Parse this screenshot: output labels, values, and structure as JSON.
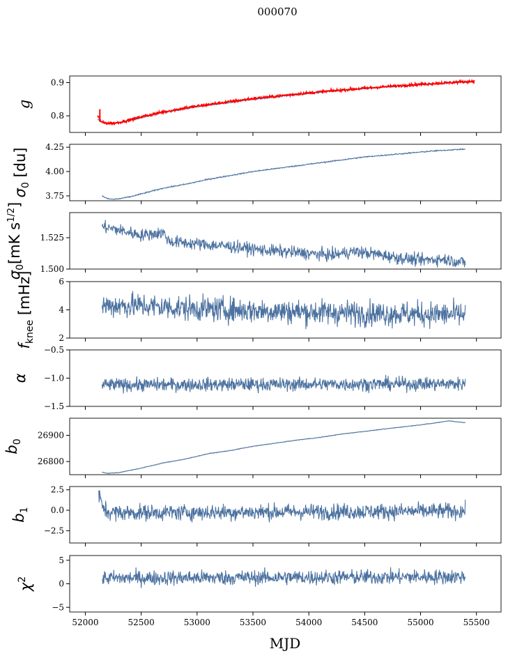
{
  "figure": {
    "title": "000070",
    "xlabel": "MJD",
    "x_ticks": [
      52000,
      52500,
      53000,
      53500,
      54000,
      54500,
      55000,
      55500
    ],
    "x_tick_labels": [
      "52000",
      "52500",
      "53000",
      "53500",
      "54000",
      "54500",
      "55000",
      "55500"
    ],
    "colors": {
      "series": "#4c72a0",
      "overlay": "#ff0000",
      "frame": "#000000"
    }
  },
  "chart_data": [
    {
      "type": "line",
      "ylabel": "g",
      "ylim": [
        0.75,
        0.92
      ],
      "xlim": [
        51860,
        55720
      ],
      "yticks": [
        0.8,
        0.9
      ],
      "ytick_labels": [
        "0.8",
        "0.9"
      ],
      "series": [
        {
          "style": "blue",
          "x": [
            52110,
            52150,
            52200,
            52250,
            52300,
            52400,
            52500,
            52700,
            52900,
            53100,
            53300,
            53500,
            53700,
            53900,
            54100,
            54300,
            54500,
            54700,
            54900,
            55100,
            55300,
            55450
          ],
          "values": [
            0.79,
            0.78,
            0.777,
            0.777,
            0.779,
            0.786,
            0.795,
            0.81,
            0.822,
            0.832,
            0.841,
            0.85,
            0.857,
            0.864,
            0.871,
            0.877,
            0.882,
            0.887,
            0.892,
            0.896,
            0.9,
            0.903
          ],
          "noise": 0.001
        },
        {
          "style": "red",
          "x": [
            52110,
            52150,
            52200,
            52250,
            52300,
            52400,
            52500,
            52700,
            52900,
            53100,
            53300,
            53500,
            53700,
            53900,
            54100,
            54300,
            54500,
            54700,
            54900,
            55100,
            55300,
            55480
          ],
          "values": [
            0.8,
            0.78,
            0.778,
            0.778,
            0.78,
            0.788,
            0.797,
            0.812,
            0.824,
            0.834,
            0.843,
            0.852,
            0.859,
            0.866,
            0.872,
            0.878,
            0.883,
            0.888,
            0.893,
            0.897,
            0.901,
            0.904
          ],
          "noise": 0.002,
          "spike": {
            "x": 52130,
            "low": 0.782,
            "high": 0.82
          }
        }
      ]
    },
    {
      "type": "line",
      "ylabel": "σ0 [du]",
      "ylim": [
        3.7,
        4.28
      ],
      "xlim": [
        51860,
        55720
      ],
      "yticks": [
        3.75,
        4.0,
        4.25
      ],
      "ytick_labels": [
        "3.75",
        "4.00",
        "4.25"
      ],
      "series": [
        {
          "style": "blue",
          "x": [
            52150,
            52200,
            52250,
            52300,
            52400,
            52500,
            52600,
            52700,
            52900,
            53100,
            53300,
            53500,
            53700,
            53900,
            54100,
            54300,
            54500,
            54700,
            54900,
            55100,
            55300,
            55400
          ],
          "values": [
            3.75,
            3.72,
            3.715,
            3.72,
            3.74,
            3.77,
            3.8,
            3.83,
            3.87,
            3.92,
            3.96,
            4.0,
            4.03,
            4.06,
            4.09,
            4.12,
            4.15,
            4.17,
            4.19,
            4.21,
            4.225,
            4.23
          ],
          "noise": 0.003
        }
      ]
    },
    {
      "type": "line",
      "ylabel": "σ0[mK s1/2]",
      "ylim": [
        1.5,
        1.545
      ],
      "xlim": [
        51860,
        55720
      ],
      "yticks": [
        1.5,
        1.525
      ],
      "ytick_labels": [
        "1.500",
        "1.525"
      ],
      "series": [
        {
          "style": "blue",
          "x": [
            52150,
            52300,
            52500,
            52700,
            52750,
            53000,
            53300,
            53600,
            53900,
            54200,
            54400,
            54600,
            54800,
            55000,
            55200,
            55400
          ],
          "values": [
            1.534,
            1.531,
            1.527,
            1.529,
            1.522,
            1.52,
            1.518,
            1.515,
            1.513,
            1.511,
            1.514,
            1.512,
            1.509,
            1.507,
            1.508,
            1.505
          ],
          "noise": 0.0025
        }
      ]
    },
    {
      "type": "line",
      "ylabel": "fknee [mHz]",
      "ylim": [
        2,
        6
      ],
      "xlim": [
        51860,
        55720
      ],
      "yticks": [
        2,
        4,
        6
      ],
      "ytick_labels": [
        "2",
        "4",
        "6"
      ],
      "series": [
        {
          "style": "blue",
          "x": [
            52150,
            52500,
            52800,
            53100,
            53500,
            54000,
            54500,
            55000,
            55400
          ],
          "values": [
            4.3,
            4.3,
            4.15,
            4.05,
            3.95,
            3.85,
            3.75,
            3.7,
            3.65
          ],
          "noise": 0.45
        }
      ]
    },
    {
      "type": "line",
      "ylabel": "α",
      "ylim": [
        -1.5,
        -0.5
      ],
      "xlim": [
        51860,
        55720
      ],
      "yticks": [
        -1.5,
        -1.0,
        -0.5
      ],
      "ytick_labels": [
        "−1.5",
        "−1.0",
        "−0.5"
      ],
      "series": [
        {
          "style": "blue",
          "x": [
            52150,
            55400
          ],
          "values": [
            -1.12,
            -1.1
          ],
          "noise": 0.06
        }
      ]
    },
    {
      "type": "line",
      "ylabel": "b0",
      "ylim": [
        26750,
        26965
      ],
      "xlim": [
        51860,
        55720
      ],
      "yticks": [
        26800,
        26900
      ],
      "ytick_labels": [
        "26800",
        "26900"
      ],
      "series": [
        {
          "style": "blue",
          "x": [
            52150,
            52200,
            52300,
            52500,
            52700,
            52900,
            53100,
            53300,
            53500,
            53700,
            53900,
            54100,
            54300,
            54500,
            54700,
            54900,
            55100,
            55250,
            55400
          ],
          "values": [
            26760,
            26755,
            26758,
            26775,
            26795,
            26810,
            26830,
            26842,
            26858,
            26870,
            26882,
            26892,
            26905,
            26915,
            26925,
            26935,
            26945,
            26955,
            26948
          ],
          "noise": 0.6
        }
      ]
    },
    {
      "type": "line",
      "ylabel": "b1",
      "ylim": [
        -4.0,
        2.9
      ],
      "xlim": [
        51860,
        55720
      ],
      "yticks": [
        -2.5,
        0.0,
        2.5
      ],
      "ytick_labels": [
        "−2.5",
        "0.0",
        "2.5"
      ],
      "series": [
        {
          "style": "blue",
          "x": [
            52120,
            52150,
            52200,
            52300,
            55400
          ],
          "values": [
            2.0,
            0.5,
            -0.2,
            -0.3,
            -0.1
          ],
          "noise": 0.5
        }
      ]
    },
    {
      "type": "line",
      "ylabel": "χ2",
      "ylim": [
        -6,
        6
      ],
      "xlim": [
        51860,
        55720
      ],
      "yticks": [
        -5,
        0,
        5
      ],
      "ytick_labels": [
        "−5",
        "0",
        "5"
      ],
      "series": [
        {
          "style": "blue",
          "x": [
            52150,
            55400
          ],
          "values": [
            1.2,
            1.5
          ],
          "noise": 0.8
        }
      ]
    }
  ]
}
